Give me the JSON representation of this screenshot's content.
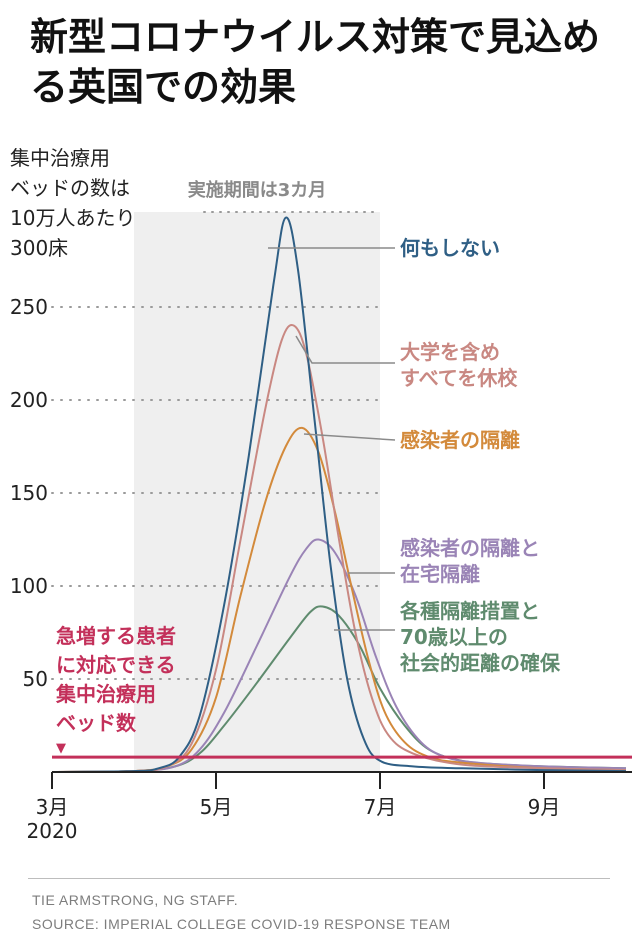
{
  "title": "新型コロナウイルス対策で見込める英国での効果",
  "colors": {
    "none": "#2f5f85",
    "school": "#c98882",
    "isolate": "#d38a3b",
    "home": "#9a84b6",
    "elderly": "#5f8b6e",
    "icu": "#c3305a",
    "shade": "#efefef",
    "axis": "#222222",
    "grid": "#9a9a9a",
    "leader": "#8a8a8a"
  },
  "chart_data": {
    "type": "line",
    "ylabel": "集中治療用\nベッドの数は\n10万人あたり\n300床",
    "y_ticks": [
      50,
      100,
      150,
      200,
      250
    ],
    "ylim": [
      0,
      300
    ],
    "x_ticks": [
      {
        "t": 0,
        "label": "3月",
        "sub": "2020"
      },
      {
        "t": 2,
        "label": "5月",
        "sub": ""
      },
      {
        "t": 4,
        "label": "7月",
        "sub": ""
      },
      {
        "t": 6,
        "label": "9月",
        "sub": ""
      }
    ],
    "xlim": [
      0,
      7
    ],
    "shaded_period": {
      "start": 1,
      "end": 4,
      "label": "実施期間は3カ月"
    },
    "threshold": {
      "value": 8,
      "label": "急増する患者\nに対応できる\n集中治療用\nベッド数",
      "marker": "▼"
    },
    "series": [
      {
        "key": "none",
        "name": "何もしない",
        "color": "#2f5f85",
        "points": [
          [
            0,
            0
          ],
          [
            1,
            0.5
          ],
          [
            1.3,
            2
          ],
          [
            1.55,
            8
          ],
          [
            1.8,
            30
          ],
          [
            2.1,
            90
          ],
          [
            2.4,
            170
          ],
          [
            2.7,
            262
          ],
          [
            2.85,
            298
          ],
          [
            3.0,
            270
          ],
          [
            3.2,
            190
          ],
          [
            3.4,
            110
          ],
          [
            3.6,
            50
          ],
          [
            3.8,
            18
          ],
          [
            4.0,
            6
          ],
          [
            4.4,
            3
          ],
          [
            5.0,
            2
          ],
          [
            6.0,
            1
          ],
          [
            7.0,
            0.5
          ]
        ]
      },
      {
        "key": "school",
        "name": "大学を含め\nすべてを休校",
        "color": "#c98882",
        "points": [
          [
            0,
            0
          ],
          [
            1,
            0.5
          ],
          [
            1.4,
            3
          ],
          [
            1.7,
            15
          ],
          [
            2.0,
            55
          ],
          [
            2.3,
            125
          ],
          [
            2.6,
            195
          ],
          [
            2.8,
            232
          ],
          [
            2.95,
            240
          ],
          [
            3.1,
            225
          ],
          [
            3.3,
            180
          ],
          [
            3.5,
            125
          ],
          [
            3.7,
            75
          ],
          [
            3.9,
            40
          ],
          [
            4.1,
            20
          ],
          [
            4.4,
            10
          ],
          [
            5.0,
            4
          ],
          [
            6.0,
            2
          ],
          [
            7.0,
            1
          ]
        ]
      },
      {
        "key": "isolate",
        "name": "感染者の隔離",
        "color": "#d38a3b",
        "points": [
          [
            0,
            0
          ],
          [
            1,
            0.5
          ],
          [
            1.4,
            3
          ],
          [
            1.7,
            12
          ],
          [
            2.0,
            40
          ],
          [
            2.3,
            95
          ],
          [
            2.6,
            145
          ],
          [
            2.85,
            175
          ],
          [
            3.05,
            185
          ],
          [
            3.25,
            172
          ],
          [
            3.45,
            140
          ],
          [
            3.65,
            100
          ],
          [
            3.85,
            62
          ],
          [
            4.05,
            33
          ],
          [
            4.3,
            16
          ],
          [
            4.6,
            8
          ],
          [
            5.0,
            5
          ],
          [
            6.0,
            2
          ],
          [
            7.0,
            1
          ]
        ]
      },
      {
        "key": "home",
        "name": "感染者の隔離と\n在宅隔離",
        "color": "#9a84b6",
        "points": [
          [
            0,
            0
          ],
          [
            1,
            0.5
          ],
          [
            1.5,
            3
          ],
          [
            1.8,
            12
          ],
          [
            2.1,
            32
          ],
          [
            2.5,
            68
          ],
          [
            2.9,
            105
          ],
          [
            3.1,
            120
          ],
          [
            3.25,
            125
          ],
          [
            3.45,
            118
          ],
          [
            3.7,
            95
          ],
          [
            3.95,
            62
          ],
          [
            4.2,
            35
          ],
          [
            4.5,
            16
          ],
          [
            4.8,
            8
          ],
          [
            5.2,
            5
          ],
          [
            6.0,
            3
          ],
          [
            7.0,
            2
          ]
        ]
      },
      {
        "key": "elderly",
        "name": "各種隔離措置と\n70歳以上の\n社会的距離の確保",
        "color": "#5f8b6e",
        "points": [
          [
            0,
            0
          ],
          [
            1,
            0.5
          ],
          [
            1.5,
            3
          ],
          [
            1.8,
            10
          ],
          [
            2.1,
            25
          ],
          [
            2.5,
            48
          ],
          [
            2.9,
            72
          ],
          [
            3.15,
            86
          ],
          [
            3.3,
            89
          ],
          [
            3.5,
            84
          ],
          [
            3.75,
            68
          ],
          [
            4.0,
            45
          ],
          [
            4.3,
            25
          ],
          [
            4.6,
            12
          ],
          [
            5.0,
            6
          ],
          [
            5.5,
            4
          ],
          [
            6.0,
            3
          ],
          [
            7.0,
            2
          ]
        ]
      }
    ]
  },
  "footer": {
    "credit": "TIE ARMSTRONG, NG STAFF.",
    "source": "SOURCE: IMPERIAL COLLEGE COVID-19 RESPONSE TEAM"
  }
}
